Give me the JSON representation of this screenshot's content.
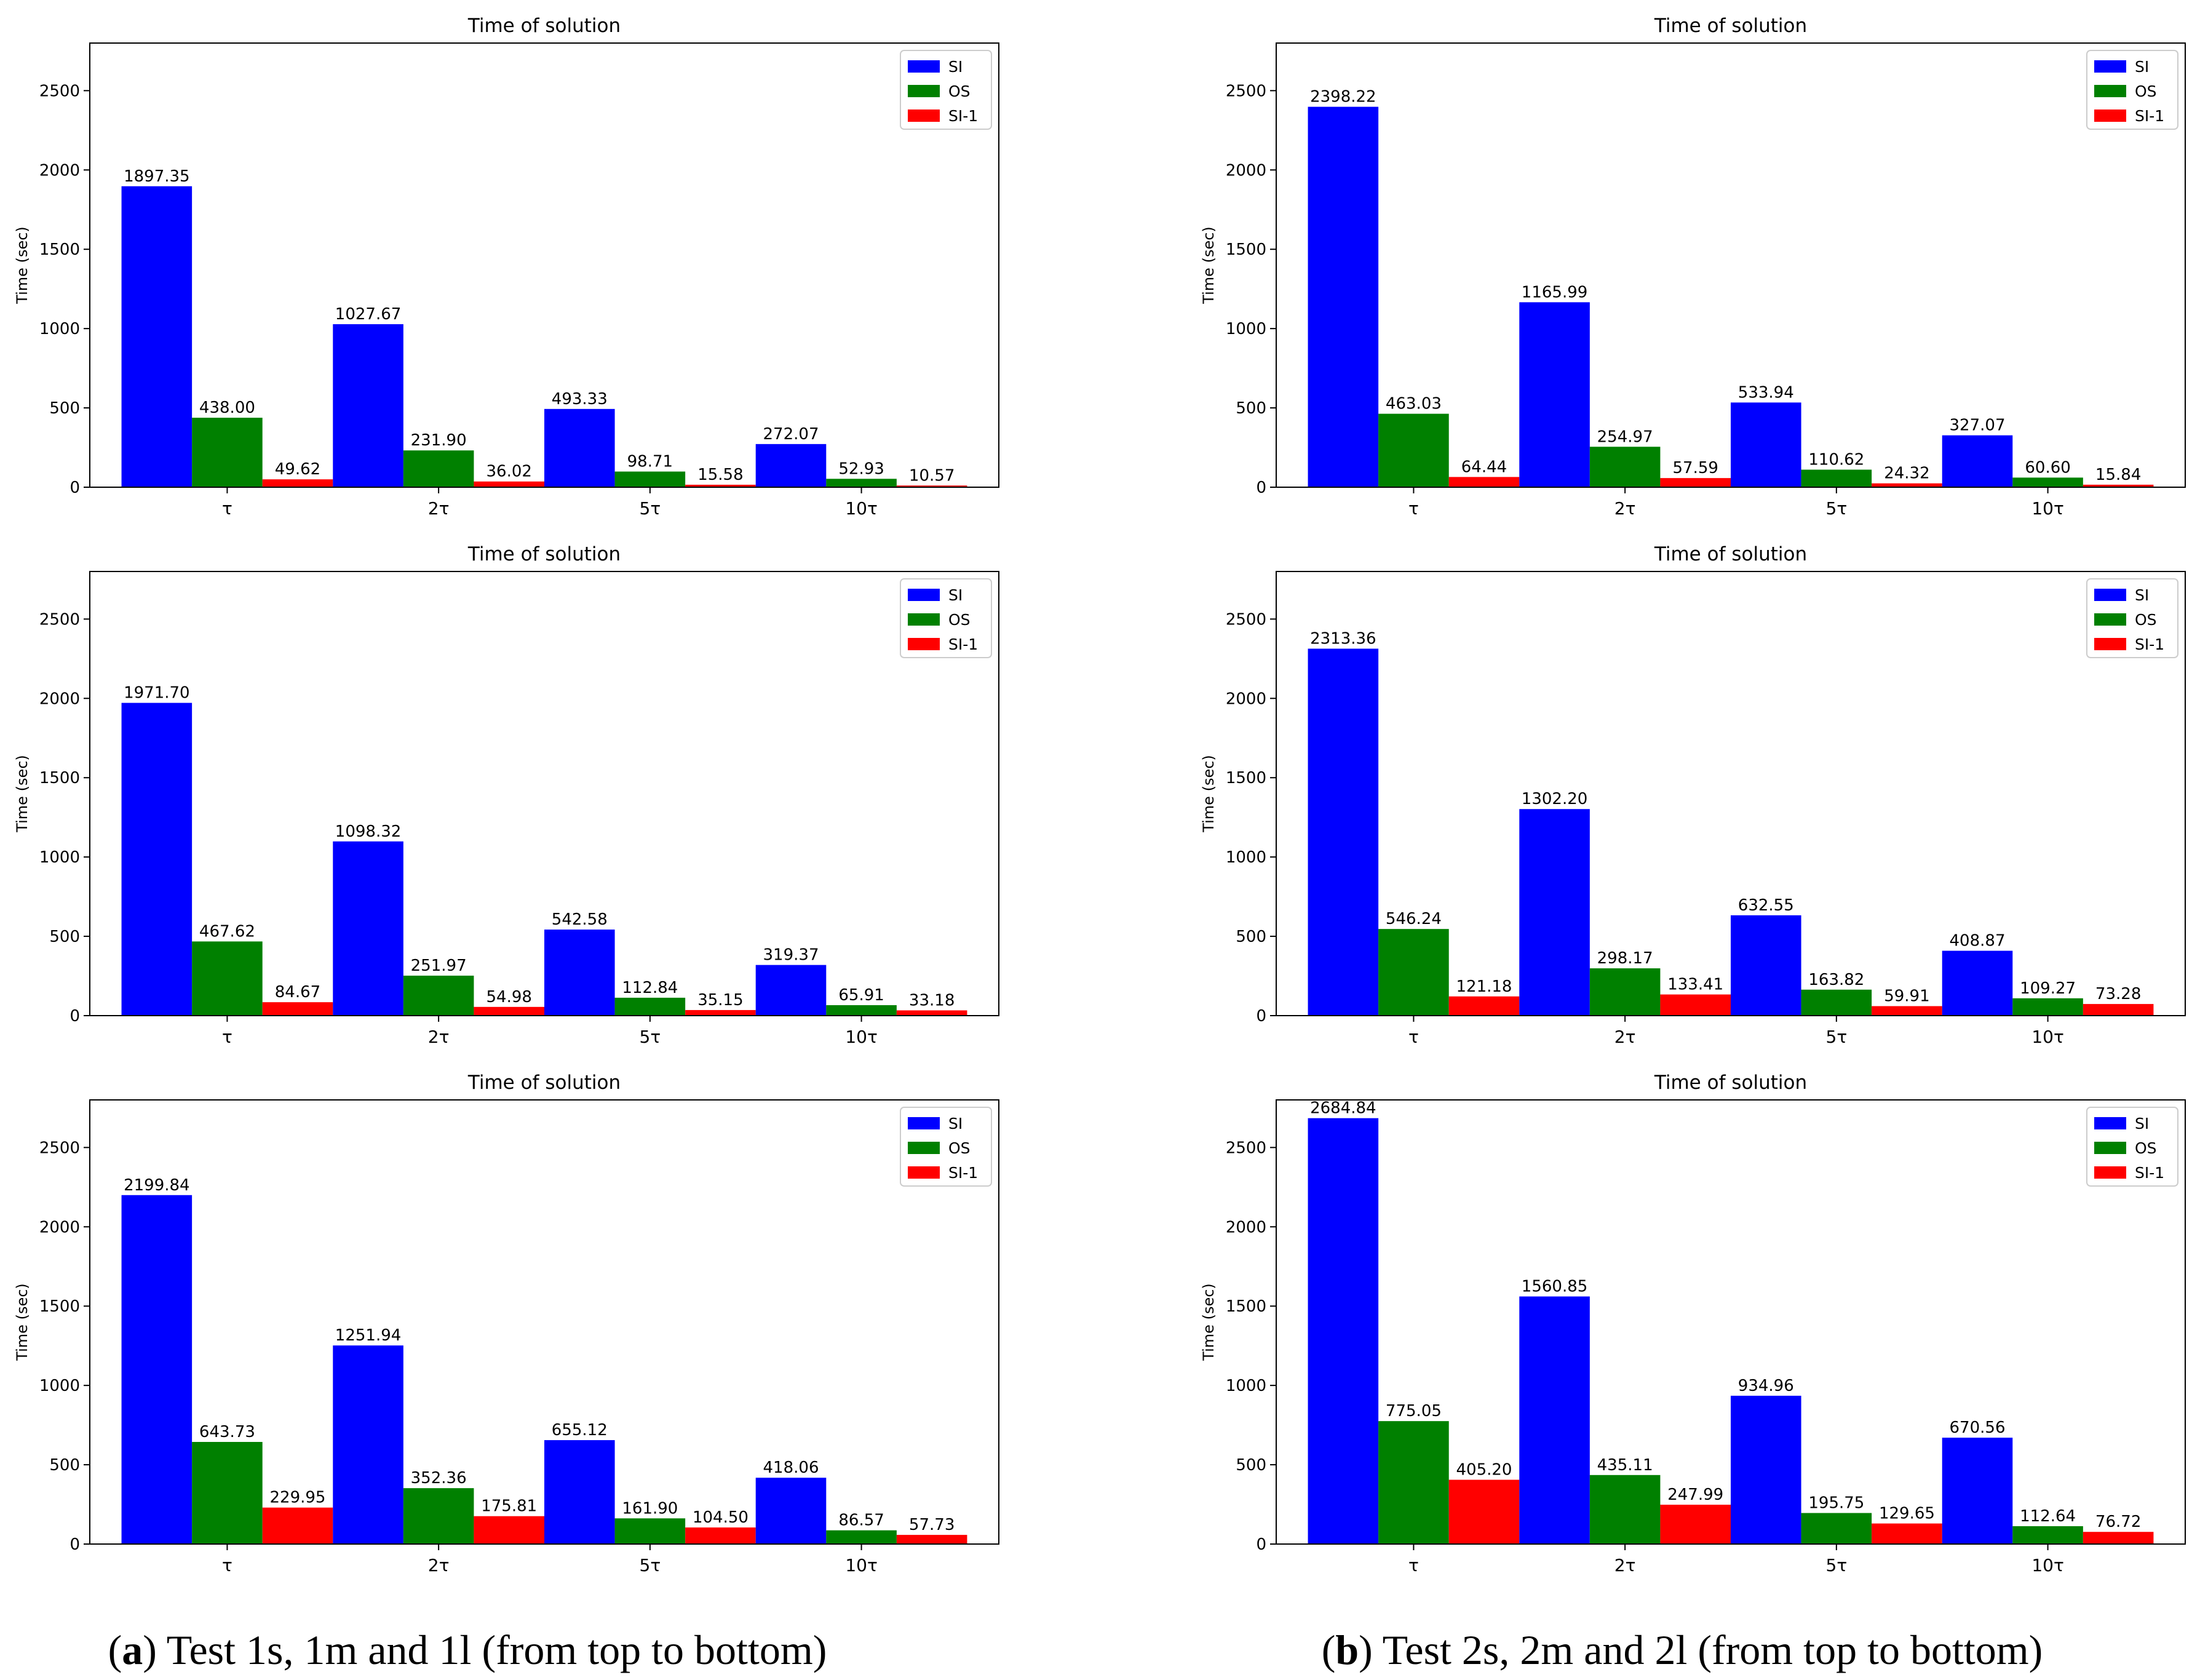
{
  "figure": {
    "captions": [
      {
        "letter": "a",
        "text": "Test 1s, 1m and 1l (from top to bottom)"
      },
      {
        "letter": "b",
        "text": "Test 2s, 2m and 2l (from top to bottom)"
      }
    ]
  },
  "colors": {
    "SI": "#0000ff",
    "OS": "#008000",
    "SI-1": "#ff0000"
  },
  "chart_data": [
    {
      "id": "1s",
      "type": "bar",
      "title": "Time of solution",
      "xlabel": "",
      "ylabel": "Time (sec)",
      "categories": [
        "τ",
        "2τ",
        "5τ",
        "10τ"
      ],
      "ylim": [
        0,
        2800
      ],
      "yticks": [
        0,
        500,
        1000,
        1500,
        2000,
        2500
      ],
      "legend": "top-right",
      "series": [
        {
          "name": "SI",
          "values": [
            1897.35,
            1027.67,
            493.33,
            272.07
          ],
          "labels": [
            "1897.35",
            "1027.67",
            "493.33",
            "272.07"
          ]
        },
        {
          "name": "OS",
          "values": [
            438.0,
            231.9,
            98.71,
            52.93
          ],
          "labels": [
            "438.00",
            "231.90",
            "98.71",
            "52.93"
          ]
        },
        {
          "name": "SI-1",
          "values": [
            49.62,
            36.02,
            15.58,
            10.57
          ],
          "labels": [
            "49.62",
            "36.02",
            "15.58",
            "10.57"
          ]
        }
      ]
    },
    {
      "id": "2s",
      "type": "bar",
      "title": "Time of solution",
      "xlabel": "",
      "ylabel": "Time (sec)",
      "categories": [
        "τ",
        "2τ",
        "5τ",
        "10τ"
      ],
      "ylim": [
        0,
        2800
      ],
      "yticks": [
        0,
        500,
        1000,
        1500,
        2000,
        2500
      ],
      "legend": "top-right",
      "series": [
        {
          "name": "SI",
          "values": [
            2398.22,
            1165.99,
            533.94,
            327.07
          ],
          "labels": [
            "2398.22",
            "1165.99",
            "533.94",
            "327.07"
          ]
        },
        {
          "name": "OS",
          "values": [
            463.03,
            254.97,
            110.62,
            60.6
          ],
          "labels": [
            "463.03",
            "254.97",
            "110.62",
            "60.60"
          ]
        },
        {
          "name": "SI-1",
          "values": [
            64.44,
            57.59,
            24.32,
            15.84
          ],
          "labels": [
            "64.44",
            "57.59",
            "24.32",
            "15.84"
          ]
        }
      ]
    },
    {
      "id": "1m",
      "type": "bar",
      "title": "Time of solution",
      "xlabel": "",
      "ylabel": "Time (sec)",
      "categories": [
        "τ",
        "2τ",
        "5τ",
        "10τ"
      ],
      "ylim": [
        0,
        2800
      ],
      "yticks": [
        0,
        500,
        1000,
        1500,
        2000,
        2500
      ],
      "legend": "top-right",
      "series": [
        {
          "name": "SI",
          "values": [
            1971.7,
            1098.32,
            542.58,
            319.37
          ],
          "labels": [
            "1971.70",
            "1098.32",
            "542.58",
            "319.37"
          ]
        },
        {
          "name": "OS",
          "values": [
            467.62,
            251.97,
            112.84,
            65.91
          ],
          "labels": [
            "467.62",
            "251.97",
            "112.84",
            "65.91"
          ]
        },
        {
          "name": "SI-1",
          "values": [
            84.67,
            54.98,
            35.15,
            33.18
          ],
          "labels": [
            "84.67",
            "54.98",
            "35.15",
            "33.18"
          ]
        }
      ]
    },
    {
      "id": "2m",
      "type": "bar",
      "title": "Time of solution",
      "xlabel": "",
      "ylabel": "Time (sec)",
      "categories": [
        "τ",
        "2τ",
        "5τ",
        "10τ"
      ],
      "ylim": [
        0,
        2800
      ],
      "yticks": [
        0,
        500,
        1000,
        1500,
        2000,
        2500
      ],
      "legend": "top-right",
      "series": [
        {
          "name": "SI",
          "values": [
            2313.36,
            1302.2,
            632.55,
            408.87
          ],
          "labels": [
            "2313.36",
            "1302.20",
            "632.55",
            "408.87"
          ]
        },
        {
          "name": "OS",
          "values": [
            546.24,
            298.17,
            163.82,
            109.27
          ],
          "labels": [
            "546.24",
            "298.17",
            "163.82",
            "109.27"
          ]
        },
        {
          "name": "SI-1",
          "values": [
            121.18,
            133.41,
            59.91,
            73.28
          ],
          "labels": [
            "121.18",
            "133.41",
            "59.91",
            "73.28"
          ]
        }
      ]
    },
    {
      "id": "1l",
      "type": "bar",
      "title": "Time of solution",
      "xlabel": "",
      "ylabel": "Time (sec)",
      "categories": [
        "τ",
        "2τ",
        "5τ",
        "10τ"
      ],
      "ylim": [
        0,
        2800
      ],
      "yticks": [
        0,
        500,
        1000,
        1500,
        2000,
        2500
      ],
      "legend": "top-right",
      "series": [
        {
          "name": "SI",
          "values": [
            2199.84,
            1251.94,
            655.12,
            418.06
          ],
          "labels": [
            "2199.84",
            "1251.94",
            "655.12",
            "418.06"
          ]
        },
        {
          "name": "OS",
          "values": [
            643.73,
            352.36,
            161.9,
            86.57
          ],
          "labels": [
            "643.73",
            "352.36",
            "161.90",
            "86.57"
          ]
        },
        {
          "name": "SI-1",
          "values": [
            229.95,
            175.81,
            104.5,
            57.73
          ],
          "labels": [
            "229.95",
            "175.81",
            "104.50",
            "57.73"
          ]
        }
      ]
    },
    {
      "id": "2l",
      "type": "bar",
      "title": "Time of solution",
      "xlabel": "",
      "ylabel": "Time (sec)",
      "categories": [
        "τ",
        "2τ",
        "5τ",
        "10τ"
      ],
      "ylim": [
        0,
        2800
      ],
      "yticks": [
        0,
        500,
        1000,
        1500,
        2000,
        2500
      ],
      "legend": "top-right",
      "series": [
        {
          "name": "SI",
          "values": [
            2684.84,
            1560.85,
            934.96,
            670.56
          ],
          "labels": [
            "2684.84",
            "1560.85",
            "934.96",
            "670.56"
          ]
        },
        {
          "name": "OS",
          "values": [
            775.05,
            435.11,
            195.75,
            112.64
          ],
          "labels": [
            "775.05",
            "435.11",
            "195.75",
            "112.64"
          ]
        },
        {
          "name": "SI-1",
          "values": [
            405.2,
            247.99,
            129.65,
            76.72
          ],
          "labels": [
            "405.20",
            "247.99",
            "129.65",
            "76.72"
          ]
        }
      ]
    }
  ]
}
